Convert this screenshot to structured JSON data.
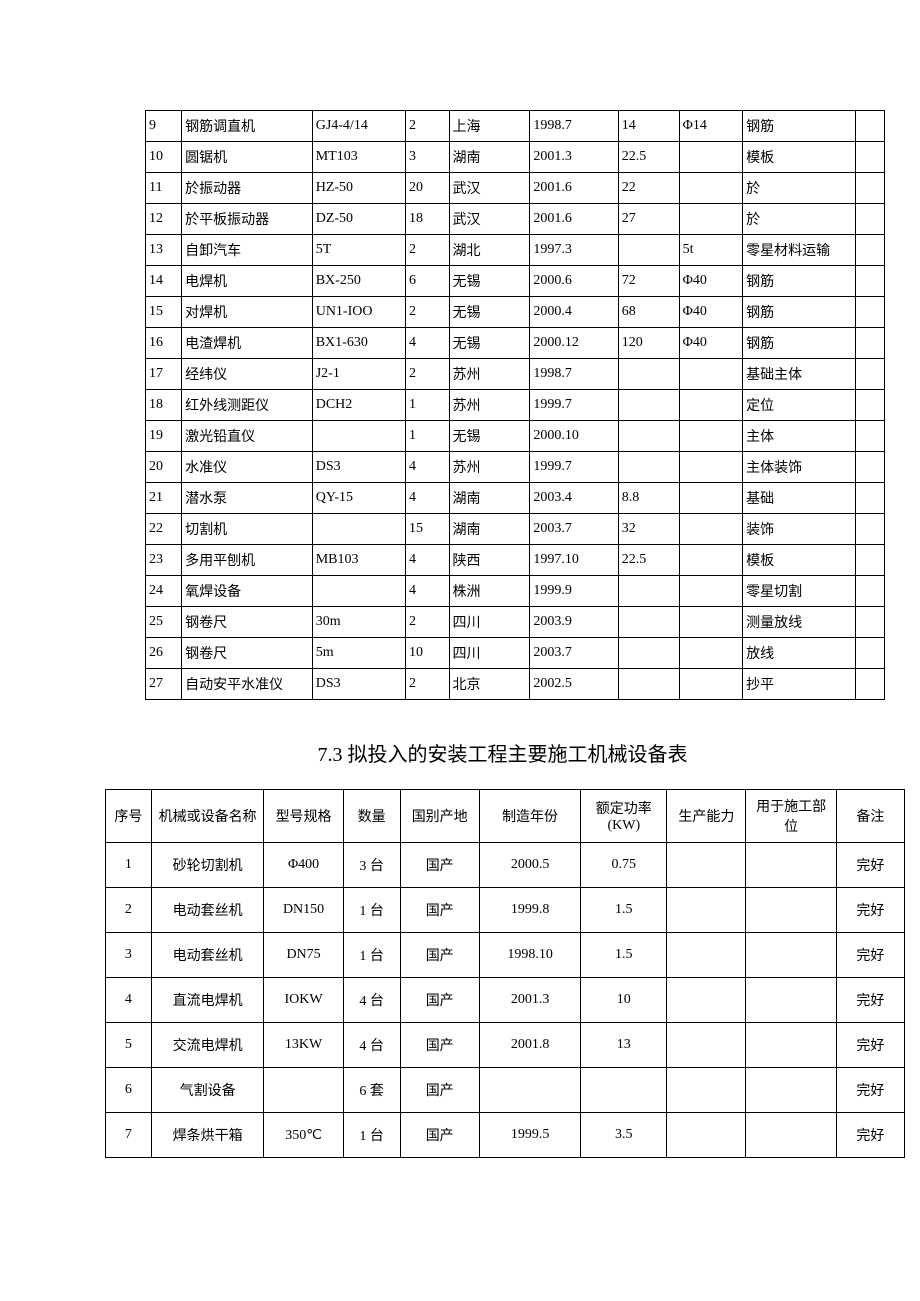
{
  "table1": {
    "col_widths": [
      "c0",
      "c1",
      "c2",
      "c3",
      "c4",
      "c5",
      "c6",
      "c7",
      "c8",
      "c9"
    ],
    "rows": [
      [
        "9",
        "钢筋调直机",
        "GJ4-4/14",
        "2",
        "上海",
        "1998.7",
        "14",
        "Φ14",
        "钢筋",
        ""
      ],
      [
        "10",
        "圆锯机",
        "MT103",
        "3",
        "湖南",
        "2001.3",
        "22.5",
        "",
        "模板",
        ""
      ],
      [
        "11",
        "於振动器",
        "HZ-50",
        "20",
        "武汉",
        "2001.6",
        "22",
        "",
        "於",
        ""
      ],
      [
        "12",
        "於平板振动器",
        "DZ-50",
        "18",
        "武汉",
        "2001.6",
        "27",
        "",
        "於",
        ""
      ],
      [
        "13",
        "自卸汽车",
        "5T",
        "2",
        "湖北",
        "1997.3",
        "",
        "5t",
        "零星材料运输",
        ""
      ],
      [
        "14",
        "电焊机",
        "BX-250",
        "6",
        "无锡",
        "2000.6",
        "72",
        "Φ40",
        "钢筋",
        ""
      ],
      [
        "15",
        "对焊机",
        "UN1-IOO",
        "2",
        "无锡",
        "2000.4",
        "68",
        "Φ40",
        "钢筋",
        ""
      ],
      [
        "16",
        "电渣焊机",
        "BX1-630",
        "4",
        "无锡",
        "2000.12",
        "120",
        "Φ40",
        "钢筋",
        ""
      ],
      [
        "17",
        "经纬仪",
        "J2-1",
        "2",
        "苏州",
        "1998.7",
        "",
        "",
        "基础主体",
        ""
      ],
      [
        "18",
        "红外线测距仪",
        "DCH2",
        "1",
        "苏州",
        "1999.7",
        "",
        "",
        "定位",
        ""
      ],
      [
        "19",
        "激光铅直仪",
        "",
        "1",
        "无锡",
        "2000.10",
        "",
        "",
        "主体",
        ""
      ],
      [
        "20",
        "水准仪",
        "DS3",
        "4",
        "苏州",
        "1999.7",
        "",
        "",
        "主体装饰",
        ""
      ],
      [
        "21",
        "潜水泵",
        "QY-15",
        "4",
        "湖南",
        "2003.4",
        "8.8",
        "",
        "基础",
        ""
      ],
      [
        "22",
        "切割机",
        "",
        "15",
        "湖南",
        "2003.7",
        "32",
        "",
        "装饰",
        ""
      ],
      [
        "23",
        "多用平刨机",
        "MB103",
        "4",
        "陕西",
        "1997.10",
        "22.5",
        "",
        "模板",
        ""
      ],
      [
        "24",
        "氧焊设备",
        "",
        "4",
        "株洲",
        "1999.9",
        "",
        "",
        "零星切割",
        ""
      ],
      [
        "25",
        "钢卷尺",
        "30m",
        "2",
        "四川",
        "2003.9",
        "",
        "",
        "测量放线",
        ""
      ],
      [
        "26",
        "钢卷尺",
        "5m",
        "10",
        "四川",
        "2003.7",
        "",
        "",
        "放线",
        ""
      ],
      [
        "27",
        "自动安平水准仪",
        "DS3",
        "2",
        "北京",
        "2002.5",
        "",
        "",
        "抄平",
        ""
      ]
    ]
  },
  "section_title": "7.3  拟投入的安装工程主要施工机械设备表",
  "table2": {
    "col_widths": [
      "d0",
      "d1",
      "d2",
      "d3",
      "d4",
      "d5",
      "d6",
      "d7",
      "d8",
      "d9"
    ],
    "headers": [
      "序号",
      "机械或设备名称",
      "型号规格",
      "数量",
      "国别产地",
      "制造年份",
      "额定功率(KW)",
      "生产能力",
      "用于施工部位",
      "备注"
    ],
    "rows": [
      [
        "1",
        "砂轮切割机",
        "Φ400",
        "3 台",
        "国产",
        "2000.5",
        "0.75",
        "",
        "",
        "完好"
      ],
      [
        "2",
        "电动套丝机",
        "DN150",
        "1 台",
        "国产",
        "1999.8",
        "1.5",
        "",
        "",
        "完好"
      ],
      [
        "3",
        "电动套丝机",
        "DN75",
        "1 台",
        "国产",
        "1998.10",
        "1.5",
        "",
        "",
        "完好"
      ],
      [
        "4",
        "直流电焊机",
        "IOKW",
        "4 台",
        "国产",
        "2001.3",
        "10",
        "",
        "",
        "完好"
      ],
      [
        "5",
        "交流电焊机",
        "13KW",
        "4 台",
        "国产",
        "2001.8",
        "13",
        "",
        "",
        "完好"
      ],
      [
        "6",
        "气割设备",
        "",
        "6 套",
        "国产",
        "",
        "",
        "",
        "",
        "完好"
      ],
      [
        "7",
        "焊条烘干箱",
        "350℃",
        "1 台",
        "国产",
        "1999.5",
        "3.5",
        "",
        "",
        "完好"
      ]
    ]
  }
}
